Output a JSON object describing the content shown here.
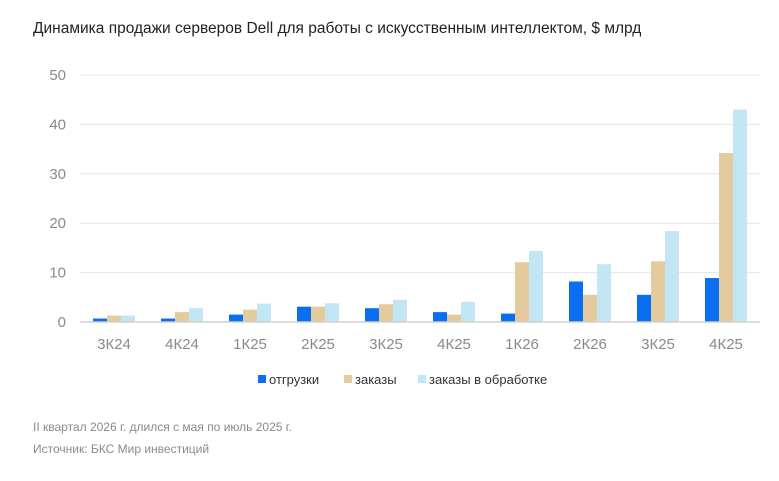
{
  "chart_data": {
    "type": "bar",
    "title": "Динамика продажи серверов Dell для работы с искусственным интеллектом, $ млрд",
    "xlabel": "",
    "ylabel": "",
    "ylim": [
      0,
      50
    ],
    "yticks": [
      0,
      10,
      20,
      30,
      40,
      50
    ],
    "grid": true,
    "legend_position": "bottom",
    "categories": [
      "3К24",
      "4К24",
      "1К25",
      "2К25",
      "3К25",
      "4К25",
      "1К26",
      "2К26",
      "3К25",
      "4К25"
    ],
    "series": [
      {
        "name": "отгрузки",
        "color": "#0a6ef0",
        "values": [
          0.7,
          0.7,
          1.5,
          3.1,
          2.8,
          2.0,
          1.7,
          8.2,
          5.5,
          8.9
        ]
      },
      {
        "name": "заказы",
        "color": "#e3cb9d",
        "values": [
          1.3,
          2.0,
          2.5,
          3.1,
          3.6,
          1.5,
          12.1,
          5.5,
          12.3,
          34.2
        ]
      },
      {
        "name": "заказы в обработке",
        "color": "#c3e6f5",
        "values": [
          1.3,
          2.8,
          3.7,
          3.8,
          4.5,
          4.1,
          14.4,
          11.7,
          18.4,
          43.0
        ]
      }
    ]
  },
  "notes": {
    "footnote": "II квартал 2026 г. длился с мая по июль 2025 г.",
    "source": "Источник: БКС Мир инвестиций"
  }
}
